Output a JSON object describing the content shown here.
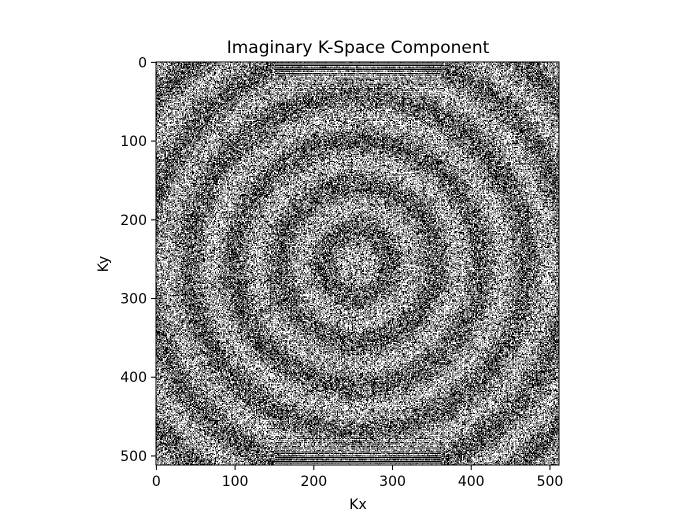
{
  "chart_data": {
    "type": "heatmap",
    "title": "Imaginary K-Space Component",
    "xlabel": "Kx",
    "ylabel": "Ky",
    "xlim": [
      0,
      511
    ],
    "ylim": [
      511,
      0
    ],
    "x_ticks": [
      0,
      100,
      200,
      300,
      400,
      500
    ],
    "y_ticks": [
      0,
      100,
      200,
      300,
      400,
      500
    ],
    "x_tick_labels": [
      "0",
      "100",
      "200",
      "300",
      "400",
      "500"
    ],
    "y_tick_labels": [
      "0",
      "100",
      "200",
      "300",
      "400",
      "500"
    ],
    "colormap": "gray",
    "colors": {
      "low": "#000000",
      "high": "#ffffff",
      "axes": "#000000"
    },
    "image_size": [
      512,
      512
    ],
    "grid": false,
    "legend": "none",
    "texture": "high-frequency salt-and-pepper noise with bright horizontal streak bands near Ky≈0 and Ky≈511 spanning Kx≈150–360, faint concentric ring pattern around center"
  }
}
